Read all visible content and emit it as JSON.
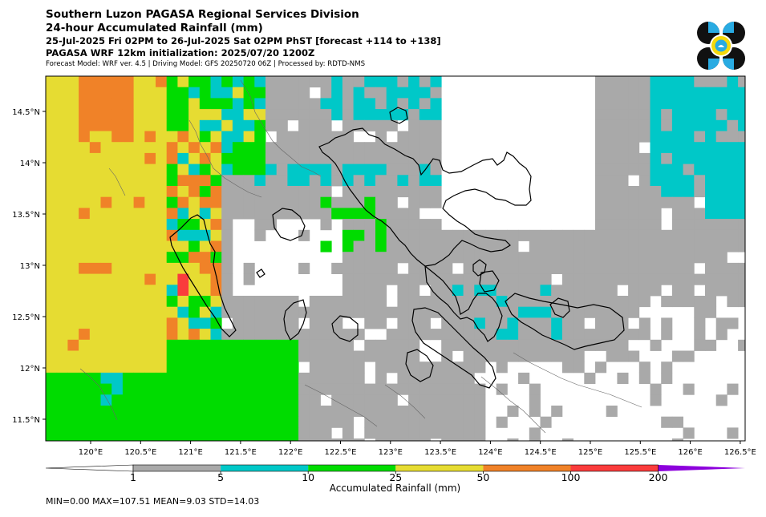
{
  "header": {
    "title": "Southern Luzon PAGASA Regional Services Division",
    "subtitle": "24-hour Accumulated Rainfall (mm)",
    "period": "25-Jul-2025 Fri 02PM to 26-Jul-2025 Sat 02PM PhST [forecast +114 to +138]",
    "initialization": "PAGASA WRF 12km initialization: 2025/07/20 1200Z",
    "model_info": "Forecast Model: WRF ver. 4.5 | Driving Model: GFS 20250720 06Z | Processed by: RDTD-NMS"
  },
  "map": {
    "lon_ticks": [
      "120°E",
      "120.5°E",
      "121°E",
      "121.5°E",
      "122°E",
      "122.5°E",
      "123°E",
      "123.5°E",
      "124°E",
      "124.5°E",
      "125°E",
      "125.5°E",
      "126°E",
      "126.5°E"
    ],
    "lat_ticks": [
      "14.5°N",
      "14°N",
      "13.5°N",
      "13°N",
      "12.5°N",
      "12°N",
      "11.5°N"
    ],
    "lon_range": [
      119.78,
      126.5
    ],
    "lat_range": [
      11.27,
      14.85
    ]
  },
  "colorbar": {
    "label": "Accumulated Rainfall (mm)",
    "levels": [
      "1",
      "5",
      "10",
      "25",
      "50",
      "100",
      "200"
    ],
    "colors": [
      "#a9a9a9",
      "#00c8c8",
      "#00dc00",
      "#e6dc32",
      "#f08228",
      "#fa3c3c",
      "#8c00dc"
    ],
    "extend": "both"
  },
  "stats": {
    "text": "MIN=0.00   MAX=107.51   MEAN=9.03   STD=14.03"
  },
  "logo": {
    "icon": "pagasa-logo"
  }
}
